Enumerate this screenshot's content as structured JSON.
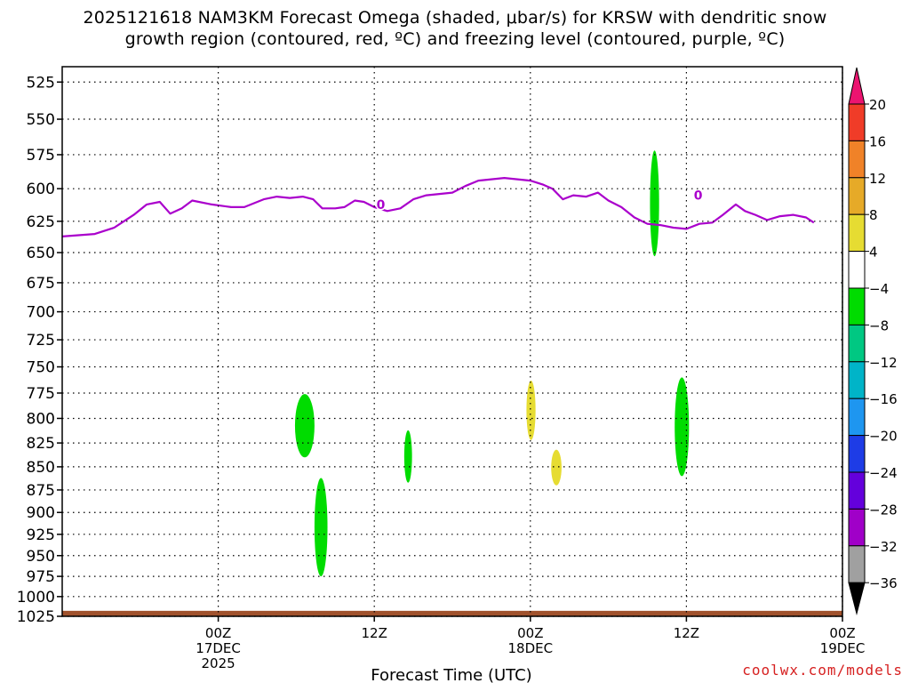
{
  "title": {
    "line1": "2025121618 NAM3KM Forecast Omega (shaded, μbar/s) for KRSW with dendritic snow",
    "line2": "growth region (contoured, red, ºC) and freezing level (contoured, purple, ºC)"
  },
  "credit": "coolwx.com/models",
  "chart_data": {
    "type": "time-height cross-section",
    "xlabel": "Forecast Time (UTC)",
    "ylabel": "",
    "y_scale": "log-pressure (inverted)",
    "y_ticks": [
      525,
      550,
      575,
      600,
      625,
      650,
      675,
      700,
      725,
      750,
      775,
      800,
      825,
      850,
      875,
      900,
      925,
      950,
      975,
      1000,
      1025
    ],
    "ylim": [
      1025,
      515
    ],
    "xlim_hours_from_16DEC18Z": [
      -6,
      54
    ],
    "x_ticks": [
      {
        "hour": 6,
        "line1": "00Z",
        "line2": "17DEC",
        "line3": "2025"
      },
      {
        "hour": 18,
        "line1": "12Z",
        "line2": "",
        "line3": ""
      },
      {
        "hour": 30,
        "line1": "00Z",
        "line2": "18DEC",
        "line3": ""
      },
      {
        "hour": 42,
        "line1": "12Z",
        "line2": "",
        "line3": ""
      },
      {
        "hour": 54,
        "line1": "00Z",
        "line2": "19DEC",
        "line3": ""
      }
    ],
    "grid": "dotted",
    "freezing_level": {
      "color": "#aa00cc",
      "label": "0",
      "label_positions": [
        {
          "hour": 18.5,
          "p": 612
        },
        {
          "hour": 42.9,
          "p": 605
        }
      ],
      "points": [
        [
          -6,
          637
        ],
        [
          -3.5,
          635
        ],
        [
          -2,
          630
        ],
        [
          -0.5,
          620
        ],
        [
          0.5,
          612
        ],
        [
          1.5,
          610
        ],
        [
          2.3,
          619
        ],
        [
          3.2,
          615
        ],
        [
          4,
          609
        ],
        [
          5.5,
          612
        ],
        [
          7,
          614
        ],
        [
          8,
          614
        ],
        [
          9.5,
          608
        ],
        [
          10.5,
          606
        ],
        [
          11.5,
          607
        ],
        [
          12.5,
          606
        ],
        [
          13.3,
          608
        ],
        [
          14,
          615
        ],
        [
          15,
          615
        ],
        [
          15.7,
          614
        ],
        [
          16.5,
          609
        ],
        [
          17.2,
          610
        ],
        [
          18,
          614
        ],
        [
          19,
          617
        ],
        [
          20,
          615
        ],
        [
          21,
          608
        ],
        [
          22,
          605
        ],
        [
          23,
          604
        ],
        [
          24,
          603
        ],
        [
          25,
          598
        ],
        [
          26,
          594
        ],
        [
          27,
          593
        ],
        [
          28,
          592
        ],
        [
          29,
          593
        ],
        [
          30,
          594
        ],
        [
          31,
          597
        ],
        [
          31.7,
          600
        ],
        [
          32.5,
          608
        ],
        [
          33.3,
          605
        ],
        [
          34.3,
          606
        ],
        [
          35.2,
          603
        ],
        [
          36,
          609
        ],
        [
          37,
          614
        ],
        [
          38,
          622
        ],
        [
          39,
          627
        ],
        [
          40,
          628
        ],
        [
          41,
          630
        ],
        [
          42,
          631
        ],
        [
          43,
          627
        ],
        [
          44,
          626
        ],
        [
          44.8,
          620
        ],
        [
          45.8,
          612
        ],
        [
          46.5,
          617
        ],
        [
          47.3,
          620
        ],
        [
          48.2,
          624
        ],
        [
          49.2,
          621
        ],
        [
          50.2,
          620
        ],
        [
          51.2,
          622
        ],
        [
          51.8,
          626
        ]
      ]
    },
    "omega_areas": [
      {
        "name": "green",
        "range": [
          -8,
          -4
        ],
        "hours": [
          11.9,
          13.4
        ],
        "p": [
          776,
          840
        ]
      },
      {
        "name": "green",
        "range": [
          -8,
          -4
        ],
        "hours": [
          13.4,
          14.4
        ],
        "p": [
          862,
          975
        ]
      },
      {
        "name": "green",
        "range": [
          -8,
          -4
        ],
        "hours": [
          20.3,
          20.9
        ],
        "p": [
          812,
          867
        ]
      },
      {
        "name": "yellow",
        "range": [
          4,
          8
        ],
        "hours": [
          29.7,
          30.4
        ],
        "p": [
          763,
          822
        ]
      },
      {
        "name": "yellow",
        "range": [
          4,
          8
        ],
        "hours": [
          31.6,
          32.4
        ],
        "p": [
          832,
          870
        ]
      },
      {
        "name": "green",
        "range": [
          -8,
          -4
        ],
        "hours": [
          39.2,
          39.9
        ],
        "p": [
          572,
          653
        ]
      },
      {
        "name": "green",
        "range": [
          -8,
          -4
        ],
        "hours": [
          41.1,
          42.2
        ],
        "p": [
          760,
          860
        ]
      }
    ],
    "terrain": {
      "color": "#a0522d",
      "p_top": 1018
    },
    "colorbar": {
      "labels": [
        20,
        16,
        12,
        8,
        4,
        -4,
        -8,
        -12,
        -16,
        -20,
        -24,
        -28,
        -32,
        -36
      ],
      "colors": [
        "#ec1470",
        "#f03c28",
        "#f08228",
        "#e6aa28",
        "#e6dc32",
        "#ffffff",
        "#00dc00",
        "#00c882",
        "#00b4c8",
        "#1e96f0",
        "#1e3ce6",
        "#6400dc",
        "#a000c8",
        "#a0a0a0",
        "#000000"
      ]
    }
  }
}
